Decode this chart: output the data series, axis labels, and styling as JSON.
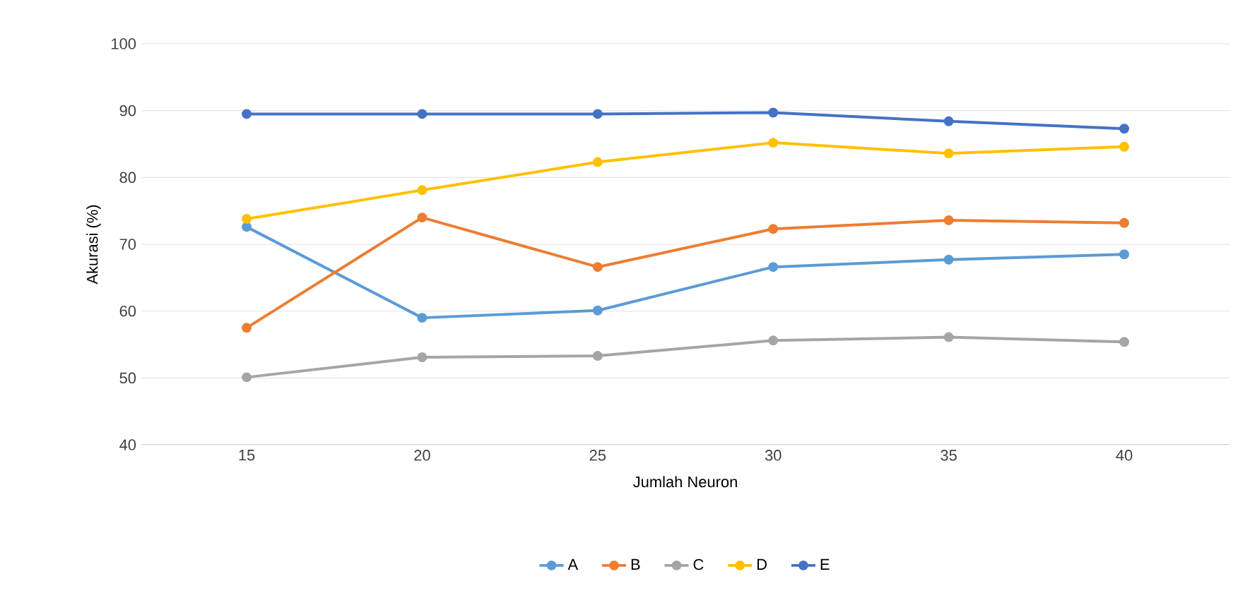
{
  "chart_data": {
    "type": "line",
    "xlabel": "Jumlah Neuron",
    "ylabel": "Akurasi (%)",
    "categories": [
      "15",
      "20",
      "25",
      "30",
      "35",
      "40"
    ],
    "ylim": [
      40,
      100
    ],
    "yticks": [
      40,
      50,
      60,
      70,
      80,
      90,
      100
    ],
    "grid": "y",
    "legend": "bottom",
    "marker": "circle",
    "line_style": "solid",
    "series": [
      {
        "name": "A",
        "color": "#5b9bd5",
        "values": [
          72.6,
          59.0,
          60.1,
          66.6,
          67.7,
          68.5
        ]
      },
      {
        "name": "B",
        "color": "#ed7d31",
        "values": [
          57.5,
          74.0,
          66.6,
          72.3,
          73.6,
          73.2
        ]
      },
      {
        "name": "C",
        "color": "#a5a5a5",
        "values": [
          50.1,
          53.1,
          53.3,
          55.6,
          56.1,
          55.4
        ]
      },
      {
        "name": "D",
        "color": "#ffc000",
        "values": [
          73.8,
          78.1,
          82.3,
          85.2,
          83.6,
          84.6
        ]
      },
      {
        "name": "E",
        "color": "#4472c4",
        "values": [
          89.5,
          89.5,
          89.5,
          89.7,
          88.4,
          87.3
        ]
      }
    ]
  }
}
